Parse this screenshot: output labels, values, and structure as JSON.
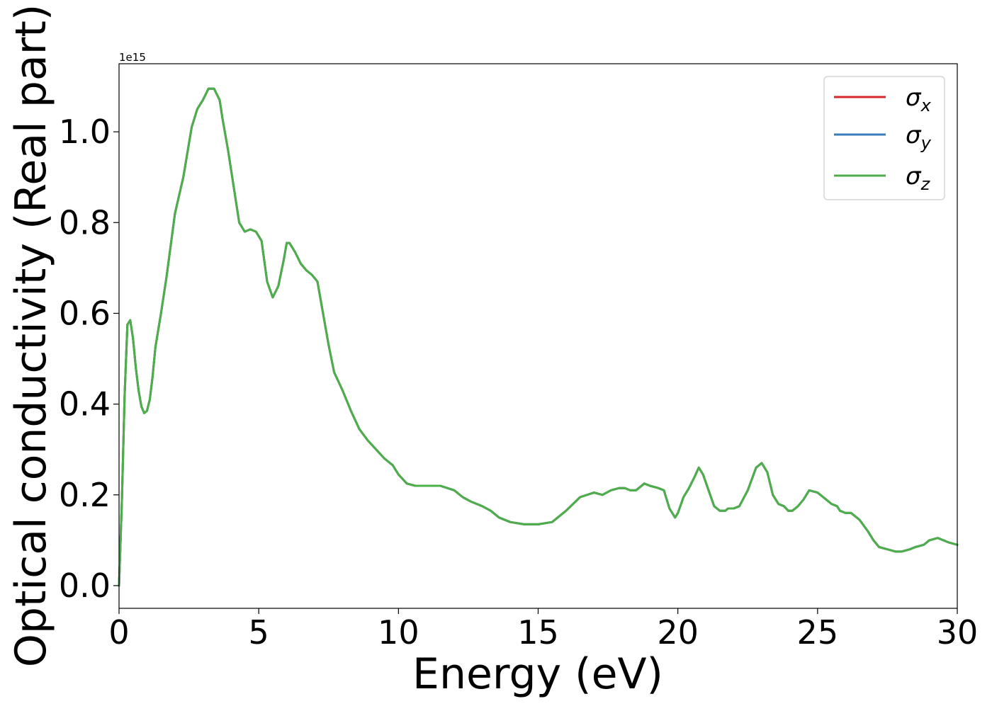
{
  "chart_data": {
    "type": "line",
    "xlabel": "Energy (eV)",
    "ylabel": "Optical conductivity (Real part)",
    "y_offset_label": "1e15",
    "xlim": [
      0,
      30
    ],
    "ylim": [
      -0.05,
      1.15
    ],
    "xticks": [
      0,
      5,
      10,
      15,
      20,
      25,
      30
    ],
    "xtick_labels": [
      "0",
      "5",
      "10",
      "15",
      "20",
      "25",
      "30"
    ],
    "yticks": [
      0.0,
      0.2,
      0.4,
      0.6,
      0.8,
      1.0
    ],
    "ytick_labels": [
      "0.0",
      "0.2",
      "0.4",
      "0.6",
      "0.8",
      "1.0"
    ],
    "grid": false,
    "legend_position": "top-right",
    "x": [
      0,
      0.1,
      0.2,
      0.3,
      0.4,
      0.5,
      0.6,
      0.7,
      0.8,
      0.9,
      1.0,
      1.1,
      1.2,
      1.3,
      1.5,
      1.7,
      2.0,
      2.3,
      2.6,
      2.8,
      3.0,
      3.2,
      3.4,
      3.6,
      3.7,
      3.9,
      4.1,
      4.3,
      4.5,
      4.7,
      4.9,
      5.1,
      5.3,
      5.5,
      5.7,
      5.9,
      6.0,
      6.1,
      6.3,
      6.5,
      6.7,
      6.9,
      7.1,
      7.3,
      7.5,
      7.7,
      8.0,
      8.3,
      8.6,
      8.9,
      9.2,
      9.5,
      9.8,
      10.0,
      10.3,
      10.6,
      11.0,
      11.5,
      12.0,
      12.3,
      12.6,
      13.0,
      13.3,
      13.6,
      14.0,
      14.5,
      15.0,
      15.5,
      16.0,
      16.5,
      17.0,
      17.3,
      17.6,
      17.9,
      18.1,
      18.3,
      18.5,
      18.8,
      19.0,
      19.3,
      19.5,
      19.7,
      19.9,
      20.0,
      20.2,
      20.4,
      20.6,
      20.75,
      20.9,
      21.1,
      21.3,
      21.5,
      21.7,
      21.8,
      22.0,
      22.2,
      22.5,
      22.8,
      23.0,
      23.2,
      23.4,
      23.6,
      23.8,
      23.95,
      24.1,
      24.3,
      24.5,
      24.7,
      25.0,
      25.3,
      25.5,
      25.7,
      25.8,
      26.0,
      26.2,
      26.5,
      26.8,
      27.0,
      27.2,
      27.5,
      27.8,
      28.0,
      28.3,
      28.5,
      28.8,
      29.0,
      29.3,
      29.5,
      29.7,
      30.0
    ],
    "series": [
      {
        "name": "σx",
        "color": "#d62728",
        "values": [
          0.0,
          0.18,
          0.42,
          0.575,
          0.585,
          0.545,
          0.48,
          0.43,
          0.395,
          0.38,
          0.385,
          0.41,
          0.46,
          0.525,
          0.6,
          0.68,
          0.82,
          0.9,
          1.01,
          1.05,
          1.07,
          1.095,
          1.095,
          1.07,
          1.03,
          0.96,
          0.88,
          0.8,
          0.78,
          0.785,
          0.78,
          0.76,
          0.67,
          0.635,
          0.66,
          0.72,
          0.755,
          0.755,
          0.735,
          0.71,
          0.695,
          0.685,
          0.67,
          0.6,
          0.53,
          0.47,
          0.43,
          0.385,
          0.345,
          0.32,
          0.3,
          0.28,
          0.265,
          0.245,
          0.225,
          0.22,
          0.22,
          0.22,
          0.21,
          0.195,
          0.185,
          0.175,
          0.165,
          0.15,
          0.14,
          0.135,
          0.135,
          0.14,
          0.165,
          0.195,
          0.205,
          0.2,
          0.21,
          0.215,
          0.215,
          0.21,
          0.21,
          0.225,
          0.22,
          0.215,
          0.21,
          0.17,
          0.15,
          0.16,
          0.195,
          0.215,
          0.24,
          0.26,
          0.245,
          0.21,
          0.175,
          0.165,
          0.165,
          0.17,
          0.17,
          0.175,
          0.21,
          0.26,
          0.27,
          0.25,
          0.2,
          0.18,
          0.175,
          0.165,
          0.165,
          0.175,
          0.19,
          0.21,
          0.205,
          0.19,
          0.18,
          0.175,
          0.165,
          0.16,
          0.16,
          0.145,
          0.12,
          0.1,
          0.085,
          0.08,
          0.075,
          0.075,
          0.08,
          0.085,
          0.09,
          0.1,
          0.105,
          0.1,
          0.095,
          0.09
        ]
      },
      {
        "name": "σy",
        "color": "#377eb8",
        "values": [
          0.0,
          0.18,
          0.42,
          0.575,
          0.585,
          0.545,
          0.48,
          0.43,
          0.395,
          0.38,
          0.385,
          0.41,
          0.46,
          0.525,
          0.6,
          0.68,
          0.82,
          0.9,
          1.01,
          1.05,
          1.07,
          1.095,
          1.095,
          1.07,
          1.03,
          0.96,
          0.88,
          0.8,
          0.78,
          0.785,
          0.78,
          0.76,
          0.67,
          0.635,
          0.66,
          0.72,
          0.755,
          0.755,
          0.735,
          0.71,
          0.695,
          0.685,
          0.67,
          0.6,
          0.53,
          0.47,
          0.43,
          0.385,
          0.345,
          0.32,
          0.3,
          0.28,
          0.265,
          0.245,
          0.225,
          0.22,
          0.22,
          0.22,
          0.21,
          0.195,
          0.185,
          0.175,
          0.165,
          0.15,
          0.14,
          0.135,
          0.135,
          0.14,
          0.165,
          0.195,
          0.205,
          0.2,
          0.21,
          0.215,
          0.215,
          0.21,
          0.21,
          0.225,
          0.22,
          0.215,
          0.21,
          0.17,
          0.15,
          0.16,
          0.195,
          0.215,
          0.24,
          0.26,
          0.245,
          0.21,
          0.175,
          0.165,
          0.165,
          0.17,
          0.17,
          0.175,
          0.21,
          0.26,
          0.27,
          0.25,
          0.2,
          0.18,
          0.175,
          0.165,
          0.165,
          0.175,
          0.19,
          0.21,
          0.205,
          0.19,
          0.18,
          0.175,
          0.165,
          0.16,
          0.16,
          0.145,
          0.12,
          0.1,
          0.085,
          0.08,
          0.075,
          0.075,
          0.08,
          0.085,
          0.09,
          0.1,
          0.105,
          0.1,
          0.095,
          0.09
        ]
      },
      {
        "name": "σz",
        "color": "#4daf4a",
        "values": [
          0.0,
          0.18,
          0.42,
          0.575,
          0.585,
          0.545,
          0.48,
          0.43,
          0.395,
          0.38,
          0.385,
          0.41,
          0.46,
          0.525,
          0.6,
          0.68,
          0.82,
          0.9,
          1.01,
          1.05,
          1.07,
          1.095,
          1.095,
          1.07,
          1.03,
          0.96,
          0.88,
          0.8,
          0.78,
          0.785,
          0.78,
          0.76,
          0.67,
          0.635,
          0.66,
          0.72,
          0.755,
          0.755,
          0.735,
          0.71,
          0.695,
          0.685,
          0.67,
          0.6,
          0.53,
          0.47,
          0.43,
          0.385,
          0.345,
          0.32,
          0.3,
          0.28,
          0.265,
          0.245,
          0.225,
          0.22,
          0.22,
          0.22,
          0.21,
          0.195,
          0.185,
          0.175,
          0.165,
          0.15,
          0.14,
          0.135,
          0.135,
          0.14,
          0.165,
          0.195,
          0.205,
          0.2,
          0.21,
          0.215,
          0.215,
          0.21,
          0.21,
          0.225,
          0.22,
          0.215,
          0.21,
          0.17,
          0.15,
          0.16,
          0.195,
          0.215,
          0.24,
          0.26,
          0.245,
          0.21,
          0.175,
          0.165,
          0.165,
          0.17,
          0.17,
          0.175,
          0.21,
          0.26,
          0.27,
          0.25,
          0.2,
          0.18,
          0.175,
          0.165,
          0.165,
          0.175,
          0.19,
          0.21,
          0.205,
          0.19,
          0.18,
          0.175,
          0.165,
          0.16,
          0.16,
          0.145,
          0.12,
          0.1,
          0.085,
          0.08,
          0.075,
          0.075,
          0.08,
          0.085,
          0.09,
          0.1,
          0.105,
          0.1,
          0.095,
          0.09
        ]
      }
    ],
    "legend": [
      {
        "symbol": "σ",
        "subscript": "x",
        "color": "#d62728"
      },
      {
        "symbol": "σ",
        "subscript": "y",
        "color": "#377eb8"
      },
      {
        "symbol": "σ",
        "subscript": "z",
        "color": "#4daf4a"
      }
    ]
  }
}
